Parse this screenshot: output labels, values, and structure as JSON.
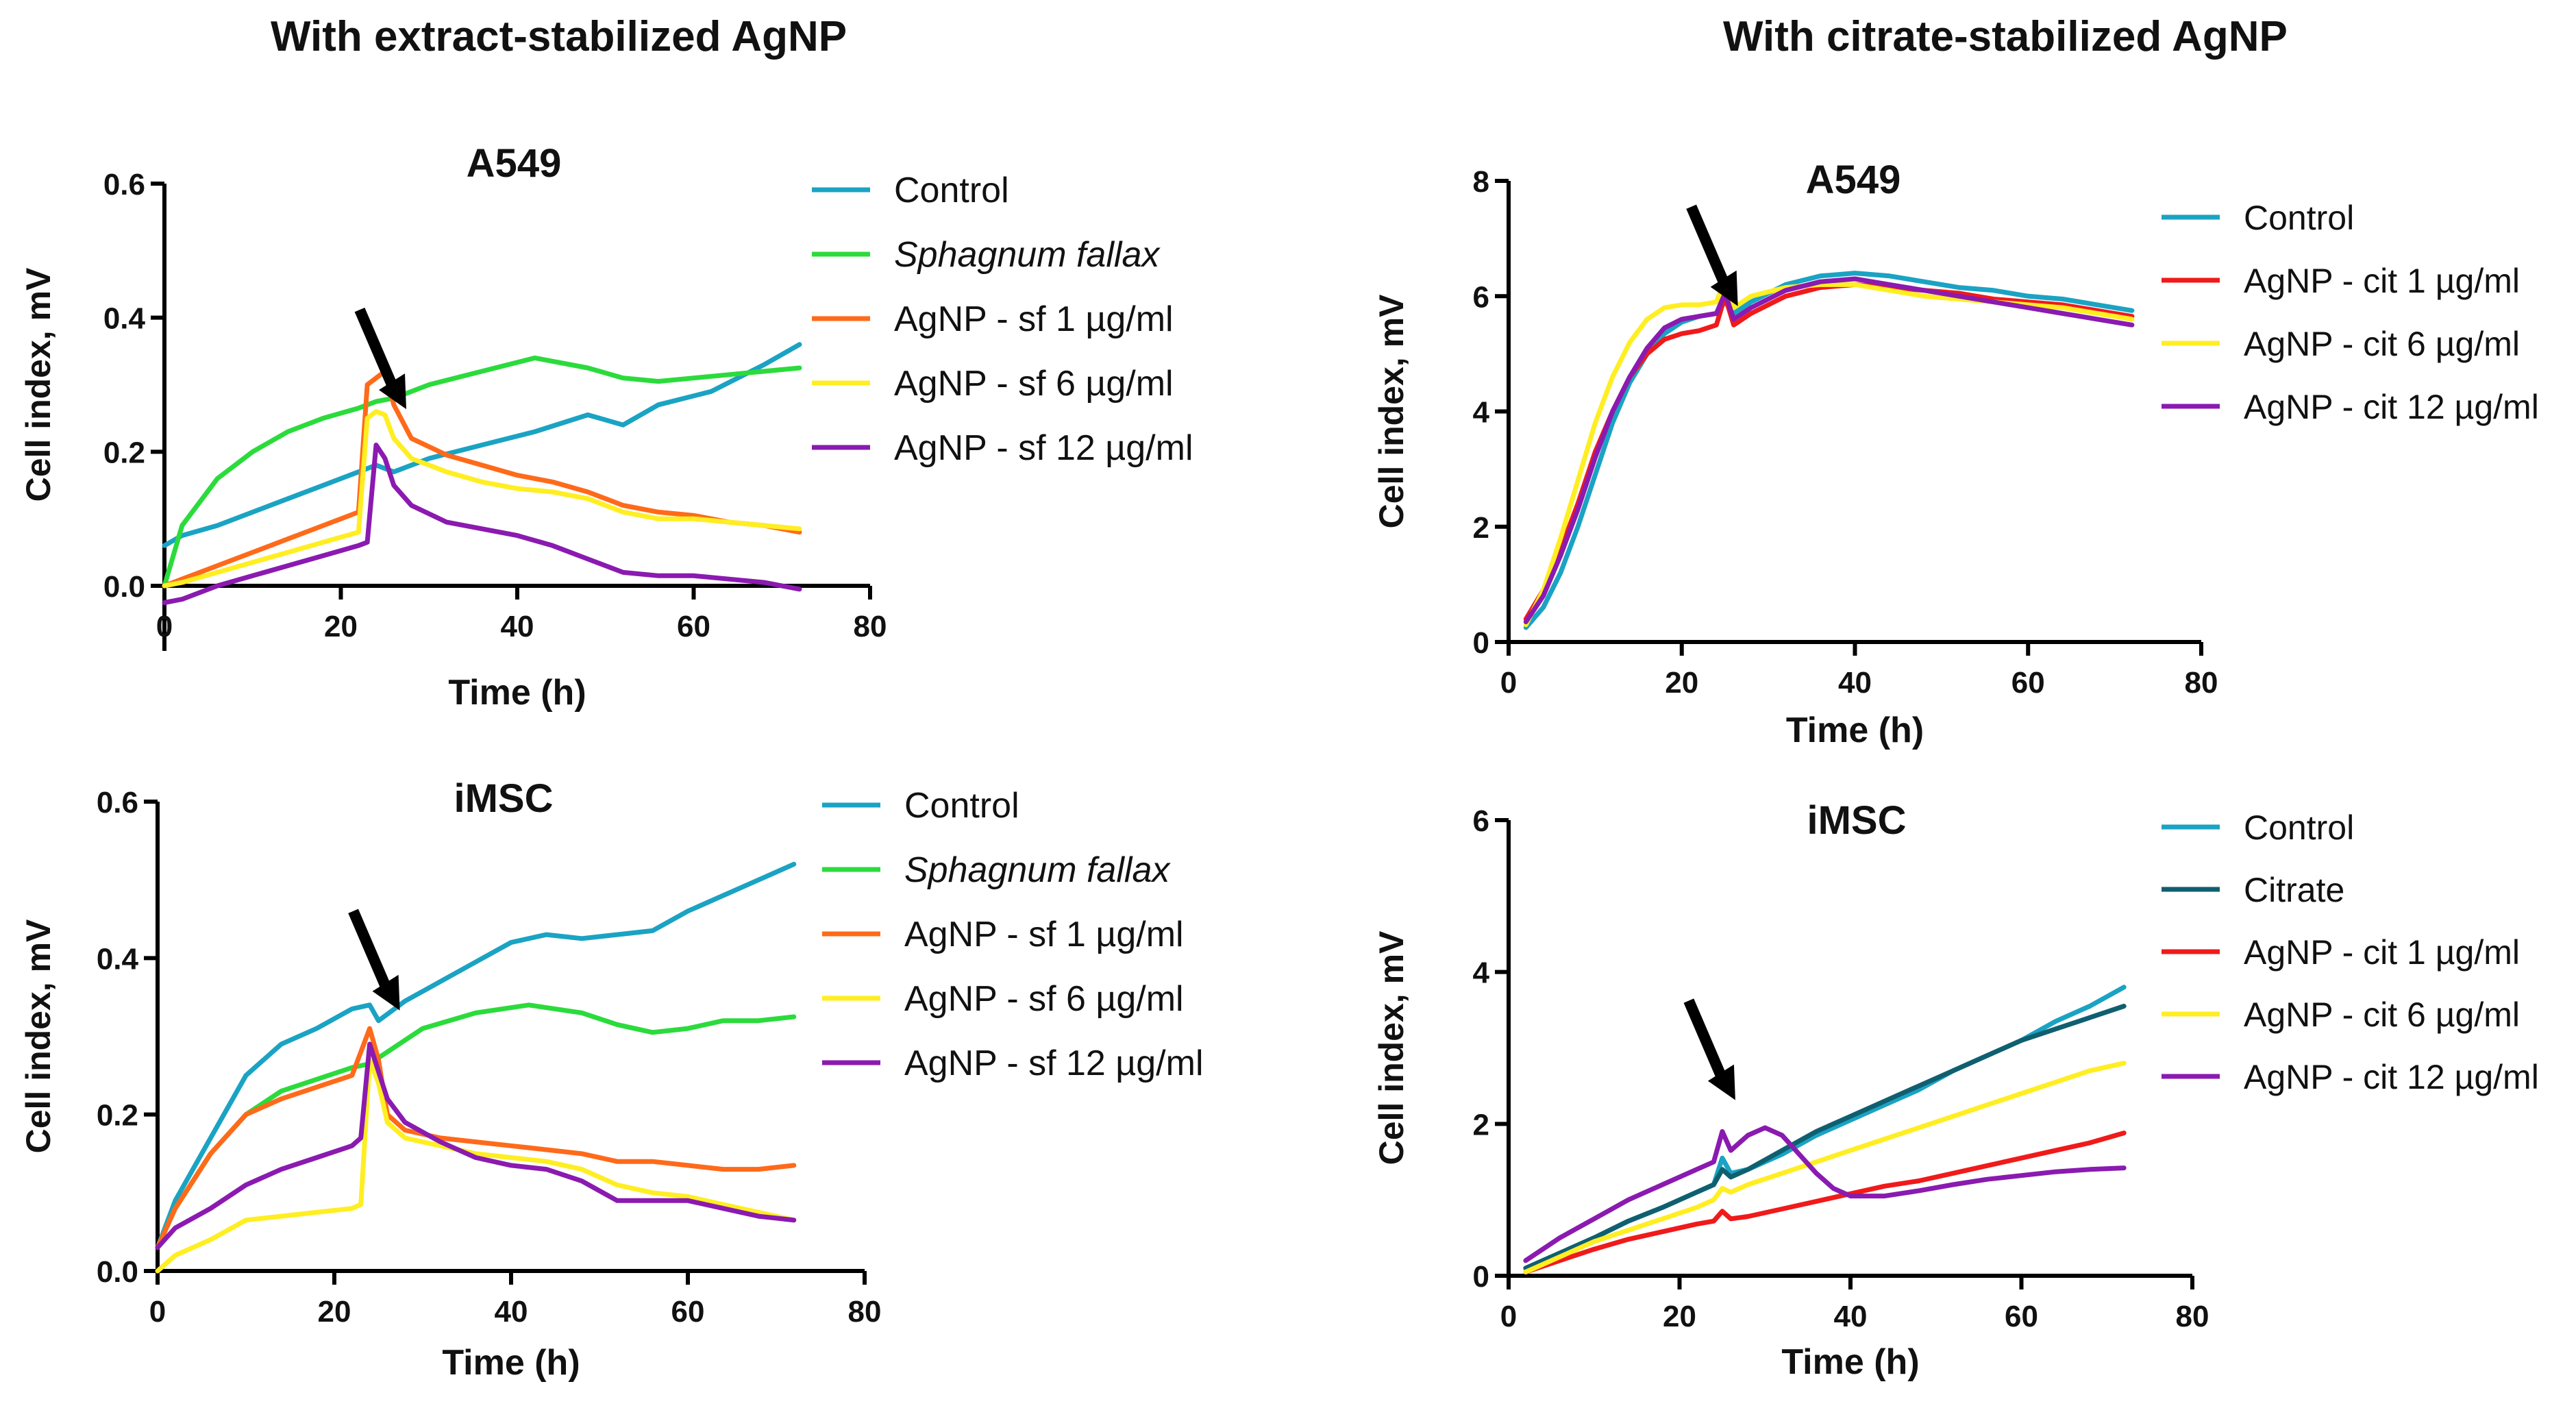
{
  "columns": [
    {
      "title": "With extract-stabilized AgNP"
    },
    {
      "title": "With citrate-stabilized AgNP"
    }
  ],
  "colors": {
    "control": "#1aa3c3",
    "sphagnum": "#2bdb3c",
    "sf1": "#ff6a1a",
    "sf6": "#ffee22",
    "sf12": "#8a1ab0",
    "citrate": "#0f5f70",
    "cit1": "#f01a1a",
    "cit6": "#ffee22",
    "cit12": "#8a1ab0"
  },
  "chart_data": [
    {
      "type": "line",
      "title": "A549",
      "xlabel": "Time (h)",
      "ylabel": "Cell index, mV",
      "xlim": [
        0,
        80
      ],
      "ylim": [
        0,
        0.6
      ],
      "xticks": [
        "0",
        "20",
        "40",
        "60",
        "80"
      ],
      "yticks": [
        "0.0",
        "0.2",
        "0.4",
        "0.6"
      ],
      "annotation": "arrow at ~24 h (nanoparticle addition)",
      "arrow_x": 24,
      "arrow_y": 0.33,
      "series": [
        {
          "name": "Control",
          "color_key": "control",
          "x": [
            0,
            2,
            6,
            10,
            14,
            18,
            22,
            24,
            26,
            30,
            36,
            42,
            48,
            52,
            56,
            62,
            68,
            72
          ],
          "y": [
            0.06,
            0.075,
            0.09,
            0.11,
            0.13,
            0.15,
            0.17,
            0.18,
            0.17,
            0.19,
            0.21,
            0.23,
            0.255,
            0.24,
            0.27,
            0.29,
            0.33,
            0.36
          ]
        },
        {
          "name": "Sphagnum fallax",
          "italic": true,
          "color_key": "sphagnum",
          "x": [
            0,
            2,
            6,
            10,
            14,
            18,
            22,
            24,
            26,
            30,
            36,
            42,
            48,
            52,
            56,
            60,
            64,
            68,
            72
          ],
          "y": [
            0.0,
            0.09,
            0.16,
            0.2,
            0.23,
            0.25,
            0.265,
            0.275,
            0.28,
            0.3,
            0.32,
            0.34,
            0.325,
            0.31,
            0.305,
            0.31,
            0.315,
            0.32,
            0.325
          ]
        },
        {
          "name": "AgNP - sf 1 µg/ml",
          "color_key": "sf1",
          "x": [
            0,
            2,
            6,
            10,
            14,
            18,
            22,
            23,
            24,
            25,
            26,
            28,
            32,
            36,
            40,
            44,
            48,
            52,
            56,
            60,
            64,
            68,
            72
          ],
          "y": [
            0.0,
            0.01,
            0.03,
            0.05,
            0.07,
            0.09,
            0.11,
            0.3,
            0.31,
            0.32,
            0.27,
            0.22,
            0.195,
            0.18,
            0.165,
            0.155,
            0.14,
            0.12,
            0.11,
            0.105,
            0.095,
            0.09,
            0.08
          ]
        },
        {
          "name": "AgNP - sf 6 µg/ml",
          "color_key": "sf6",
          "x": [
            0,
            2,
            6,
            10,
            14,
            18,
            22,
            23,
            24,
            25,
            26,
            28,
            32,
            36,
            40,
            44,
            48,
            52,
            56,
            60,
            64,
            68,
            72
          ],
          "y": [
            0.0,
            0.005,
            0.02,
            0.035,
            0.05,
            0.065,
            0.08,
            0.25,
            0.26,
            0.255,
            0.22,
            0.19,
            0.17,
            0.155,
            0.145,
            0.14,
            0.13,
            0.11,
            0.1,
            0.1,
            0.095,
            0.09,
            0.085
          ]
        },
        {
          "name": "AgNP - sf 12 µg/ml",
          "color_key": "sf12",
          "x": [
            0,
            2,
            6,
            10,
            14,
            18,
            22,
            23,
            24,
            25,
            26,
            28,
            32,
            36,
            40,
            44,
            48,
            52,
            56,
            60,
            64,
            68,
            72
          ],
          "y": [
            -0.025,
            -0.02,
            0.0,
            0.015,
            0.03,
            0.045,
            0.06,
            0.065,
            0.21,
            0.19,
            0.15,
            0.12,
            0.095,
            0.085,
            0.075,
            0.06,
            0.04,
            0.02,
            0.015,
            0.015,
            0.01,
            0.005,
            -0.005
          ]
        }
      ]
    },
    {
      "type": "line",
      "title": "iMSC",
      "xlabel": "Time (h)",
      "ylabel": "Cell index, mV",
      "xlim": [
        0,
        80
      ],
      "ylim": [
        0,
        0.6
      ],
      "xticks": [
        "0",
        "20",
        "40",
        "60",
        "80"
      ],
      "yticks": [
        "0.0",
        "0.2",
        "0.4",
        "0.6"
      ],
      "annotation": "arrow at ~24 h (nanoparticle addition)",
      "arrow_x": 24,
      "arrow_y": 0.39,
      "series": [
        {
          "name": "Control",
          "color_key": "control",
          "x": [
            0,
            2,
            6,
            10,
            14,
            18,
            22,
            24,
            25,
            28,
            32,
            36,
            40,
            44,
            48,
            52,
            56,
            60,
            64,
            68,
            72
          ],
          "y": [
            0.03,
            0.09,
            0.17,
            0.25,
            0.29,
            0.31,
            0.335,
            0.34,
            0.32,
            0.345,
            0.37,
            0.395,
            0.42,
            0.43,
            0.425,
            0.43,
            0.435,
            0.46,
            0.48,
            0.5,
            0.52
          ]
        },
        {
          "name": "Sphagnum fallax",
          "italic": true,
          "color_key": "sphagnum",
          "x": [
            0,
            2,
            6,
            10,
            14,
            18,
            22,
            24,
            26,
            30,
            36,
            42,
            48,
            52,
            56,
            60,
            64,
            68,
            72
          ],
          "y": [
            0.03,
            0.08,
            0.15,
            0.2,
            0.23,
            0.245,
            0.26,
            0.265,
            0.28,
            0.31,
            0.33,
            0.34,
            0.33,
            0.315,
            0.305,
            0.31,
            0.32,
            0.32,
            0.325
          ]
        },
        {
          "name": "AgNP - sf 1 µg/ml",
          "color_key": "sf1",
          "x": [
            0,
            2,
            6,
            10,
            14,
            18,
            22,
            24,
            25,
            26,
            28,
            32,
            36,
            40,
            44,
            48,
            52,
            56,
            60,
            64,
            68,
            72
          ],
          "y": [
            0.03,
            0.08,
            0.15,
            0.2,
            0.22,
            0.235,
            0.25,
            0.31,
            0.27,
            0.2,
            0.18,
            0.17,
            0.165,
            0.16,
            0.155,
            0.15,
            0.14,
            0.14,
            0.135,
            0.13,
            0.13,
            0.135
          ]
        },
        {
          "name": "AgNP - sf 6 µg/ml",
          "color_key": "sf6",
          "x": [
            0,
            2,
            6,
            10,
            14,
            18,
            22,
            23,
            24,
            25,
            26,
            28,
            32,
            36,
            40,
            44,
            48,
            52,
            56,
            60,
            64,
            68,
            72
          ],
          "y": [
            0.0,
            0.02,
            0.04,
            0.065,
            0.07,
            0.075,
            0.08,
            0.085,
            0.27,
            0.24,
            0.19,
            0.17,
            0.16,
            0.15,
            0.145,
            0.14,
            0.13,
            0.11,
            0.1,
            0.095,
            0.085,
            0.075,
            0.065
          ]
        },
        {
          "name": "AgNP - sf 12 µg/ml",
          "color_key": "sf12",
          "x": [
            0,
            2,
            6,
            10,
            14,
            18,
            22,
            23,
            24,
            25,
            26,
            28,
            32,
            36,
            40,
            44,
            48,
            52,
            56,
            60,
            64,
            68,
            72
          ],
          "y": [
            0.03,
            0.055,
            0.08,
            0.11,
            0.13,
            0.145,
            0.16,
            0.17,
            0.29,
            0.255,
            0.22,
            0.19,
            0.165,
            0.145,
            0.135,
            0.13,
            0.115,
            0.09,
            0.09,
            0.09,
            0.08,
            0.07,
            0.065
          ]
        }
      ]
    },
    {
      "type": "line",
      "title": "A549",
      "xlabel": "Time (h)",
      "ylabel": "Cell index, mV",
      "xlim": [
        0,
        80
      ],
      "ylim": [
        0,
        8
      ],
      "xticks": [
        "0",
        "20",
        "40",
        "60",
        "80"
      ],
      "yticks": [
        "0",
        "2",
        "4",
        "6",
        "8"
      ],
      "annotation": "arrow at ~24 h (nanoparticle addition)",
      "arrow_x": 23,
      "arrow_y": 6.6,
      "series": [
        {
          "name": "Control",
          "color_key": "control",
          "x": [
            2,
            4,
            6,
            8,
            10,
            12,
            14,
            16,
            18,
            20,
            22,
            24,
            25,
            26,
            28,
            32,
            36,
            40,
            44,
            48,
            52,
            56,
            60,
            64,
            68,
            72
          ],
          "y": [
            0.25,
            0.6,
            1.2,
            2.0,
            2.9,
            3.8,
            4.5,
            5.0,
            5.35,
            5.55,
            5.65,
            5.7,
            5.9,
            5.7,
            5.9,
            6.2,
            6.35,
            6.4,
            6.35,
            6.25,
            6.15,
            6.1,
            6.0,
            5.95,
            5.85,
            5.75
          ]
        },
        {
          "name": "AgNP - cit 1 µg/ml",
          "color_key": "cit1",
          "x": [
            2,
            4,
            6,
            8,
            10,
            12,
            14,
            16,
            18,
            20,
            22,
            24,
            25,
            26,
            28,
            32,
            36,
            40,
            44,
            48,
            52,
            56,
            60,
            64,
            68,
            72
          ],
          "y": [
            0.4,
            0.9,
            1.6,
            2.4,
            3.3,
            4.0,
            4.6,
            5.0,
            5.25,
            5.35,
            5.4,
            5.5,
            6.0,
            5.5,
            5.7,
            6.0,
            6.15,
            6.2,
            6.15,
            6.1,
            6.05,
            5.95,
            5.9,
            5.85,
            5.75,
            5.65
          ]
        },
        {
          "name": "AgNP - cit 6 µg/ml",
          "color_key": "cit6",
          "x": [
            2,
            4,
            6,
            8,
            10,
            12,
            14,
            16,
            18,
            20,
            22,
            24,
            25,
            26,
            28,
            32,
            36,
            40,
            44,
            48,
            52,
            56,
            60,
            64,
            68,
            72
          ],
          "y": [
            0.3,
            0.9,
            1.8,
            2.8,
            3.8,
            4.6,
            5.2,
            5.6,
            5.8,
            5.85,
            5.85,
            5.9,
            6.3,
            5.8,
            6.0,
            6.15,
            6.2,
            6.2,
            6.1,
            6.0,
            5.95,
            5.9,
            5.85,
            5.8,
            5.7,
            5.6
          ]
        },
        {
          "name": "AgNP - cit 12 µg/ml",
          "color_key": "cit12",
          "x": [
            2,
            4,
            6,
            8,
            10,
            12,
            14,
            16,
            18,
            20,
            22,
            24,
            25,
            26,
            28,
            32,
            36,
            40,
            44,
            48,
            52,
            56,
            60,
            64,
            68,
            72
          ],
          "y": [
            0.35,
            0.8,
            1.5,
            2.3,
            3.2,
            4.0,
            4.6,
            5.1,
            5.45,
            5.6,
            5.65,
            5.7,
            6.05,
            5.6,
            5.8,
            6.1,
            6.25,
            6.3,
            6.2,
            6.1,
            6.0,
            5.9,
            5.8,
            5.7,
            5.6,
            5.5
          ]
        }
      ]
    },
    {
      "type": "line",
      "title": "iMSC",
      "xlabel": "Time (h)",
      "ylabel": "Cell index, mV",
      "xlim": [
        0,
        80
      ],
      "ylim": [
        0,
        6
      ],
      "xticks": [
        "0",
        "20",
        "40",
        "60",
        "80"
      ],
      "yticks": [
        "0",
        "2",
        "4",
        "6"
      ],
      "annotation": "arrow at ~24 h (nanoparticle addition)",
      "arrow_x": 23,
      "arrow_y": 2.9,
      "series": [
        {
          "name": "Control",
          "color_key": "control",
          "x": [
            2,
            6,
            10,
            14,
            18,
            22,
            24,
            25,
            26,
            28,
            32,
            36,
            40,
            44,
            48,
            52,
            56,
            60,
            64,
            68,
            72
          ],
          "y": [
            0.1,
            0.3,
            0.5,
            0.72,
            0.9,
            1.1,
            1.2,
            1.55,
            1.35,
            1.4,
            1.6,
            1.85,
            2.05,
            2.25,
            2.45,
            2.7,
            2.9,
            3.1,
            3.35,
            3.55,
            3.8
          ]
        },
        {
          "name": "Citrate",
          "color_key": "citrate",
          "x": [
            2,
            6,
            10,
            14,
            18,
            22,
            24,
            25,
            26,
            28,
            32,
            36,
            40,
            44,
            48,
            52,
            56,
            60,
            64,
            68,
            72
          ],
          "y": [
            0.1,
            0.3,
            0.5,
            0.72,
            0.9,
            1.1,
            1.2,
            1.4,
            1.3,
            1.4,
            1.65,
            1.9,
            2.1,
            2.3,
            2.5,
            2.7,
            2.9,
            3.1,
            3.25,
            3.4,
            3.55
          ]
        },
        {
          "name": "AgNP - cit 1 µg/ml",
          "color_key": "cit1",
          "x": [
            2,
            6,
            10,
            14,
            18,
            22,
            24,
            25,
            26,
            28,
            32,
            36,
            40,
            44,
            48,
            52,
            56,
            60,
            64,
            68,
            72
          ],
          "y": [
            0.05,
            0.2,
            0.35,
            0.48,
            0.58,
            0.68,
            0.72,
            0.85,
            0.75,
            0.78,
            0.88,
            0.98,
            1.08,
            1.18,
            1.25,
            1.35,
            1.45,
            1.55,
            1.65,
            1.75,
            1.88
          ]
        },
        {
          "name": "AgNP - cit 6 µg/ml",
          "color_key": "cit6",
          "x": [
            2,
            6,
            10,
            14,
            18,
            22,
            24,
            25,
            26,
            28,
            32,
            36,
            40,
            44,
            48,
            52,
            56,
            60,
            64,
            68,
            72
          ],
          "y": [
            0.05,
            0.25,
            0.45,
            0.6,
            0.75,
            0.9,
            1.0,
            1.15,
            1.1,
            1.2,
            1.35,
            1.5,
            1.65,
            1.8,
            1.95,
            2.1,
            2.25,
            2.4,
            2.55,
            2.7,
            2.8
          ]
        },
        {
          "name": "AgNP - cit 12 µg/ml",
          "color_key": "cit12",
          "x": [
            2,
            6,
            10,
            14,
            18,
            22,
            24,
            25,
            26,
            28,
            30,
            32,
            34,
            36,
            38,
            40,
            44,
            48,
            52,
            56,
            60,
            64,
            68,
            72
          ],
          "y": [
            0.2,
            0.5,
            0.75,
            1.0,
            1.2,
            1.4,
            1.5,
            1.9,
            1.65,
            1.85,
            1.95,
            1.85,
            1.6,
            1.35,
            1.15,
            1.05,
            1.05,
            1.12,
            1.2,
            1.27,
            1.32,
            1.37,
            1.4,
            1.42
          ]
        }
      ]
    }
  ]
}
